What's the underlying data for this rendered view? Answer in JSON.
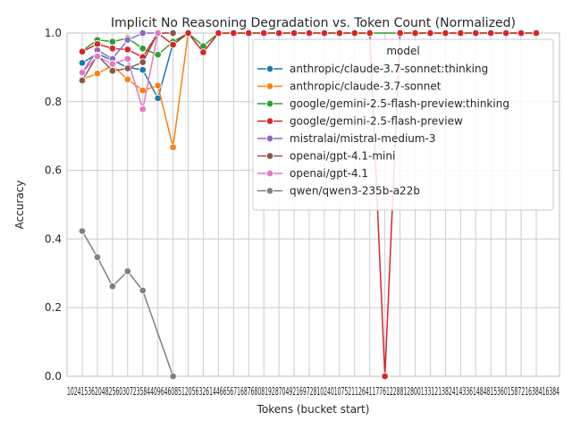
{
  "chart_data": {
    "type": "line",
    "title": "Implicit No Reasoning Degradation vs. Token Count (Normalized)",
    "xlabel": "Tokens (bucket start)",
    "ylabel": "Accuracy",
    "ylim": [
      0,
      1.0
    ],
    "yticks": [
      "0.0",
      "0.2",
      "0.4",
      "0.6",
      "0.8",
      "1.0"
    ],
    "x_label_text": "1024153620482560307235844096460851205632614466567168768081928704921697281024010752112641177612288128001331213824143361484815360158721638416384",
    "categories": [
      "1024",
      "1536",
      "2048",
      "2560",
      "3072",
      "3584",
      "4096",
      "4608",
      "5120",
      "5632",
      "6144",
      "6656",
      "7168",
      "7680",
      "8192",
      "8704",
      "9216",
      "9728",
      "10240",
      "10752",
      "11264",
      "11776",
      "12288",
      "12800",
      "13312",
      "13824",
      "14336",
      "14848",
      "15360",
      "15872",
      "16384"
    ],
    "grid": true,
    "legend_title": "model",
    "legend_position": "upper-right",
    "series": [
      {
        "name": "anthropic/claude-3.7-sonnet:thinking",
        "color": "#1f77b4",
        "values": [
          0.913,
          0.94,
          0.92,
          0.9,
          0.893,
          0.81,
          0.97,
          1.0,
          null,
          null,
          null,
          null,
          null,
          null,
          null,
          null,
          null,
          null,
          null,
          null,
          null,
          null,
          null,
          null,
          null,
          null,
          null,
          null,
          null,
          null,
          null
        ]
      },
      {
        "name": "anthropic/claude-3.7-sonnet",
        "color": "#ff7f0e",
        "values": [
          0.865,
          0.882,
          0.905,
          0.865,
          0.833,
          0.847,
          0.667,
          1.0,
          null,
          null,
          null,
          null,
          null,
          null,
          null,
          null,
          null,
          null,
          null,
          null,
          null,
          null,
          null,
          null,
          null,
          null,
          null,
          null,
          null,
          null,
          null
        ]
      },
      {
        "name": "google/gemini-2.5-flash-preview:thinking",
        "color": "#2ca02c",
        "values": [
          0.948,
          0.98,
          0.975,
          0.985,
          0.955,
          0.937,
          0.975,
          1.0,
          0.962,
          1.0,
          1.0,
          1.0,
          1.0,
          1.0,
          1.0,
          1.0,
          1.0,
          1.0,
          1.0,
          1.0,
          null,
          1.0,
          1.0,
          1.0,
          1.0,
          1.0,
          1.0,
          1.0,
          1.0,
          1.0,
          1.0
        ]
      },
      {
        "name": "google/gemini-2.5-flash-preview",
        "color": "#d62728",
        "values": [
          0.946,
          0.968,
          0.955,
          0.952,
          0.93,
          1.0,
          0.966,
          1.0,
          0.944,
          1.0,
          1.0,
          1.0,
          1.0,
          1.0,
          1.0,
          1.0,
          1.0,
          1.0,
          1.0,
          1.0,
          0.0,
          1.0,
          1.0,
          1.0,
          1.0,
          1.0,
          1.0,
          1.0,
          1.0,
          1.0,
          1.0
        ]
      },
      {
        "name": "mistralai/mistral-medium-3",
        "color": "#9467bd",
        "values": [
          0.885,
          0.95,
          0.925,
          0.98,
          1.0,
          1.0,
          1.0,
          null,
          null,
          null,
          null,
          null,
          null,
          null,
          null,
          null,
          null,
          null,
          null,
          null,
          null,
          null,
          null,
          null,
          null,
          null,
          null,
          null,
          null,
          null,
          null
        ]
      },
      {
        "name": "openai/gpt-4.1-mini",
        "color": "#8c564b",
        "values": [
          0.862,
          0.935,
          0.89,
          0.897,
          0.915,
          1.0,
          1.0,
          null,
          null,
          null,
          null,
          null,
          null,
          null,
          null,
          null,
          null,
          null,
          null,
          null,
          null,
          null,
          null,
          null,
          null,
          null,
          null,
          null,
          null,
          null,
          null
        ]
      },
      {
        "name": "openai/gpt-4.1",
        "color": "#e377c2",
        "values": [
          0.885,
          0.932,
          0.91,
          0.925,
          0.778,
          1.0,
          null,
          null,
          null,
          null,
          null,
          null,
          null,
          null,
          null,
          null,
          null,
          null,
          null,
          null,
          null,
          null,
          null,
          null,
          null,
          null,
          null,
          null,
          null,
          null,
          null
        ]
      },
      {
        "name": "qwen/qwen3-235b-a22b",
        "color": "#7f7f7f",
        "values": [
          0.423,
          0.347,
          0.262,
          0.306,
          0.25,
          null,
          0.0,
          null,
          null,
          null,
          null,
          null,
          null,
          null,
          null,
          null,
          null,
          null,
          null,
          null,
          null,
          null,
          null,
          null,
          null,
          null,
          null,
          null,
          null,
          null,
          null
        ]
      }
    ]
  }
}
